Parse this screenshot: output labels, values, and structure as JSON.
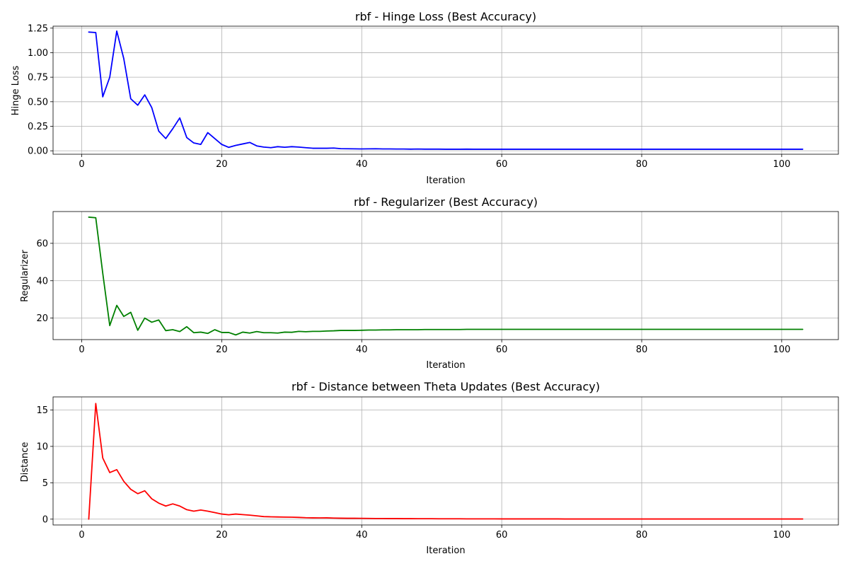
{
  "chart_data": [
    {
      "type": "line",
      "title": "rbf - Hinge Loss (Best Accuracy)",
      "xlabel": "Iteration",
      "ylabel": "Hinge Loss",
      "color": "#0000ff",
      "grid": true,
      "xlim": [
        -4.1,
        108.1
      ],
      "ylim": [
        -0.035,
        1.27
      ],
      "xticks": [
        0,
        20,
        40,
        60,
        80,
        100
      ],
      "yticks": [
        0.0,
        0.25,
        0.5,
        0.75,
        1.0,
        1.25
      ],
      "ytick_labels": [
        "0.00",
        "0.25",
        "0.50",
        "0.75",
        "1.00",
        "1.25"
      ],
      "x": [
        1,
        2,
        3,
        4,
        5,
        6,
        7,
        8,
        9,
        10,
        11,
        12,
        13,
        14,
        15,
        16,
        17,
        18,
        19,
        20,
        21,
        22,
        23,
        24,
        25,
        26,
        27,
        28,
        29,
        30,
        31,
        32,
        33,
        34,
        35,
        36,
        37,
        38,
        39,
        40,
        41,
        42,
        43,
        44,
        45,
        46,
        47,
        48,
        49,
        50,
        51,
        52,
        53,
        54,
        55,
        56,
        57,
        58,
        59,
        60,
        61,
        62,
        63,
        64,
        65,
        66,
        67,
        68,
        69,
        70,
        71,
        72,
        73,
        74,
        75,
        76,
        77,
        78,
        79,
        80,
        81,
        82,
        83,
        84,
        85,
        86,
        87,
        88,
        89,
        90,
        91,
        92,
        93,
        94,
        95,
        96,
        97,
        98,
        99,
        100,
        101,
        102,
        103
      ],
      "y": [
        1.21,
        1.205,
        0.55,
        0.75,
        1.22,
        0.94,
        0.53,
        0.465,
        0.57,
        0.44,
        0.2,
        0.125,
        0.225,
        0.335,
        0.135,
        0.08,
        0.065,
        0.185,
        0.125,
        0.065,
        0.035,
        0.055,
        0.07,
        0.085,
        0.05,
        0.038,
        0.032,
        0.042,
        0.036,
        0.042,
        0.038,
        0.032,
        0.026,
        0.026,
        0.026,
        0.028,
        0.022,
        0.021,
        0.02,
        0.019,
        0.02,
        0.021,
        0.019,
        0.019,
        0.018,
        0.018,
        0.017,
        0.018,
        0.017,
        0.017,
        0.017,
        0.016,
        0.016,
        0.016,
        0.017,
        0.016,
        0.016,
        0.016,
        0.016,
        0.016,
        0.016,
        0.016,
        0.016,
        0.016,
        0.016,
        0.016,
        0.016,
        0.016,
        0.016,
        0.016,
        0.016,
        0.016,
        0.016,
        0.016,
        0.016,
        0.016,
        0.016,
        0.016,
        0.016,
        0.016,
        0.016,
        0.016,
        0.016,
        0.016,
        0.016,
        0.016,
        0.016,
        0.016,
        0.016,
        0.016,
        0.016,
        0.016,
        0.016,
        0.016,
        0.016,
        0.016,
        0.016,
        0.016,
        0.016,
        0.016,
        0.016,
        0.016,
        0.016
      ]
    },
    {
      "type": "line",
      "title": "rbf - Regularizer (Best Accuracy)",
      "xlabel": "Iteration",
      "ylabel": "Regularizer",
      "color": "#008000",
      "grid": true,
      "xlim": [
        -4.1,
        108.1
      ],
      "ylim": [
        8.5,
        77.0
      ],
      "xticks": [
        0,
        20,
        40,
        60,
        80,
        100
      ],
      "yticks": [
        20,
        40,
        60
      ],
      "ytick_labels": [
        "20",
        "40",
        "60"
      ],
      "x": [
        1,
        2,
        3,
        4,
        5,
        6,
        7,
        8,
        9,
        10,
        11,
        12,
        13,
        14,
        15,
        16,
        17,
        18,
        19,
        20,
        21,
        22,
        23,
        24,
        25,
        26,
        27,
        28,
        29,
        30,
        31,
        32,
        33,
        34,
        35,
        36,
        37,
        38,
        39,
        40,
        41,
        42,
        43,
        44,
        45,
        46,
        47,
        48,
        49,
        50,
        51,
        52,
        53,
        54,
        55,
        56,
        57,
        58,
        59,
        60,
        61,
        62,
        63,
        64,
        65,
        66,
        67,
        68,
        69,
        70,
        71,
        72,
        73,
        74,
        75,
        76,
        77,
        78,
        79,
        80,
        81,
        82,
        83,
        84,
        85,
        86,
        87,
        88,
        89,
        90,
        91,
        92,
        93,
        94,
        95,
        96,
        97,
        98,
        99,
        100,
        101,
        102,
        103
      ],
      "y": [
        74.0,
        73.7,
        44.0,
        16.0,
        26.8,
        20.9,
        23.1,
        13.5,
        20.0,
        17.8,
        19.0,
        13.3,
        13.8,
        12.8,
        15.4,
        12.2,
        12.5,
        11.8,
        13.8,
        12.3,
        12.3,
        11.0,
        12.5,
        12.0,
        12.8,
        12.2,
        12.2,
        12.0,
        12.5,
        12.4,
        12.9,
        12.7,
        12.9,
        12.9,
        13.1,
        13.2,
        13.4,
        13.4,
        13.4,
        13.5,
        13.6,
        13.6,
        13.7,
        13.7,
        13.8,
        13.8,
        13.8,
        13.8,
        13.9,
        13.9,
        13.9,
        13.9,
        13.9,
        13.9,
        14.0,
        14.0,
        14.0,
        14.0,
        14.0,
        14.0,
        14.0,
        14.0,
        14.0,
        14.0,
        14.0,
        14.0,
        14.0,
        14.0,
        14.0,
        14.0,
        14.0,
        14.0,
        14.0,
        14.0,
        14.0,
        14.0,
        14.0,
        14.0,
        14.0,
        14.0,
        14.0,
        14.0,
        14.0,
        14.0,
        14.0,
        14.0,
        14.0,
        14.0,
        14.0,
        14.0,
        14.0,
        14.0,
        14.0,
        14.0,
        14.0,
        14.0,
        14.0,
        14.0,
        14.0,
        14.0,
        14.0,
        14.0,
        14.0
      ]
    },
    {
      "type": "line",
      "title": "rbf - Distance between Theta Updates (Best Accuracy)",
      "xlabel": "Iteration",
      "ylabel": "Distance",
      "color": "#ff0000",
      "grid": true,
      "xlim": [
        -4.1,
        108.1
      ],
      "ylim": [
        -0.8,
        16.8
      ],
      "xticks": [
        0,
        20,
        40,
        60,
        80,
        100
      ],
      "yticks": [
        0,
        5,
        10,
        15
      ],
      "ytick_labels": [
        "0",
        "5",
        "10",
        "15"
      ],
      "x": [
        1,
        2,
        3,
        4,
        5,
        6,
        7,
        8,
        9,
        10,
        11,
        12,
        13,
        14,
        15,
        16,
        17,
        18,
        19,
        20,
        21,
        22,
        23,
        24,
        25,
        26,
        27,
        28,
        29,
        30,
        31,
        32,
        33,
        34,
        35,
        36,
        37,
        38,
        39,
        40,
        41,
        42,
        43,
        44,
        45,
        46,
        47,
        48,
        49,
        50,
        51,
        52,
        53,
        54,
        55,
        56,
        57,
        58,
        59,
        60,
        61,
        62,
        63,
        64,
        65,
        66,
        67,
        68,
        69,
        70,
        71,
        72,
        73,
        74,
        75,
        76,
        77,
        78,
        79,
        80,
        81,
        82,
        83,
        84,
        85,
        86,
        87,
        88,
        89,
        90,
        91,
        92,
        93,
        94,
        95,
        96,
        97,
        98,
        99,
        100,
        101,
        102,
        103
      ],
      "y": [
        0.0,
        15.9,
        8.4,
        6.4,
        6.8,
        5.2,
        4.1,
        3.5,
        3.9,
        2.8,
        2.2,
        1.8,
        2.1,
        1.8,
        1.3,
        1.1,
        1.25,
        1.1,
        0.9,
        0.7,
        0.6,
        0.7,
        0.62,
        0.55,
        0.45,
        0.35,
        0.32,
        0.3,
        0.28,
        0.27,
        0.24,
        0.2,
        0.18,
        0.17,
        0.18,
        0.15,
        0.13,
        0.12,
        0.12,
        0.11,
        0.1,
        0.09,
        0.09,
        0.08,
        0.08,
        0.07,
        0.07,
        0.06,
        0.06,
        0.06,
        0.05,
        0.05,
        0.05,
        0.05,
        0.04,
        0.04,
        0.04,
        0.04,
        0.04,
        0.03,
        0.03,
        0.03,
        0.03,
        0.03,
        0.03,
        0.03,
        0.03,
        0.03,
        0.02,
        0.02,
        0.02,
        0.02,
        0.02,
        0.02,
        0.02,
        0.02,
        0.02,
        0.02,
        0.02,
        0.02,
        0.02,
        0.02,
        0.02,
        0.02,
        0.02,
        0.02,
        0.02,
        0.02,
        0.02,
        0.02,
        0.02,
        0.02,
        0.02,
        0.02,
        0.02,
        0.02,
        0.02,
        0.02,
        0.02,
        0.02,
        0.02,
        0.02,
        0.02
      ]
    }
  ]
}
